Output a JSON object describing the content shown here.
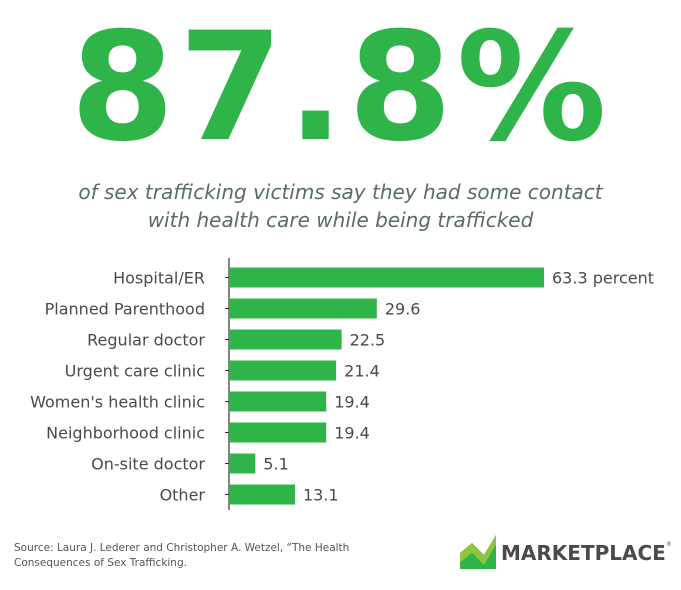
{
  "headline": {
    "stat": "87.8%",
    "line1": "of sex trafficking victims say they had some contact",
    "line2": "with health care while being trafficked"
  },
  "colors": {
    "accent": "#2fb44a",
    "text": "#4a4a4a",
    "subtitle": "#5a6b6b"
  },
  "chart_data": {
    "type": "bar",
    "orientation": "horizontal",
    "categories": [
      "Hospital/ER",
      "Planned Parenthood",
      "Regular doctor",
      "Urgent care clinic",
      "Women's health clinic",
      "Neighborhood clinic",
      "On-site doctor",
      "Other"
    ],
    "values": [
      63.3,
      29.6,
      22.5,
      21.4,
      19.4,
      19.4,
      5.1,
      13.1
    ],
    "value_labels": [
      "63.3 percent",
      "29.6",
      "22.5",
      "21.4",
      "19.4",
      "19.4",
      "5.1",
      "13.1"
    ],
    "xlim": [
      0,
      63.3
    ],
    "grid": false
  },
  "source": {
    "line1": "Source: Laura J. Lederer and Christopher A. Wetzel, “The Health",
    "line2": "Consequences of Sex Trafficking."
  },
  "logo": {
    "text": "MARKETPLACE",
    "mark": "®",
    "icon": "marketplace-logo-icon"
  }
}
